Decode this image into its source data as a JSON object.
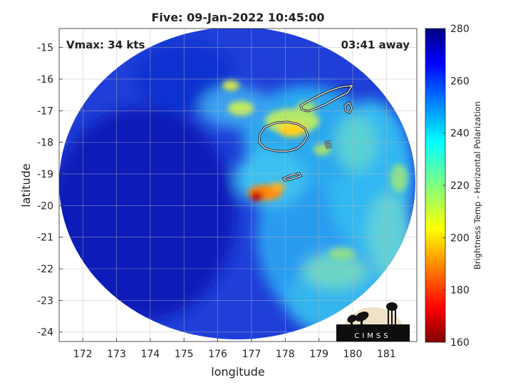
{
  "title": "Five: 09-Jan-2022 10:45:00",
  "annotations": {
    "vmax": "Vmax: 34 kts",
    "time_away": "03:41 away"
  },
  "axes": {
    "xlabel": "longitude",
    "ylabel": "latitude",
    "xlim": [
      171.3,
      181.9
    ],
    "ylim": [
      -24.3,
      -14.4
    ],
    "xticks": [
      {
        "value": 172,
        "label": "172"
      },
      {
        "value": 173,
        "label": "173"
      },
      {
        "value": 174,
        "label": "174"
      },
      {
        "value": 175,
        "label": "175"
      },
      {
        "value": 176,
        "label": "176"
      },
      {
        "value": 177,
        "label": "177"
      },
      {
        "value": 178,
        "label": "178"
      },
      {
        "value": 179,
        "label": "179"
      },
      {
        "value": 180,
        "label": "180"
      },
      {
        "value": 181,
        "label": "181"
      }
    ],
    "yticks": [
      {
        "value": -15,
        "label": "-15"
      },
      {
        "value": -16,
        "label": "-16"
      },
      {
        "value": -17,
        "label": "-17"
      },
      {
        "value": -18,
        "label": "-18"
      },
      {
        "value": -19,
        "label": "-19"
      },
      {
        "value": -20,
        "label": "-20"
      },
      {
        "value": -21,
        "label": "-21"
      },
      {
        "value": -22,
        "label": "-22"
      },
      {
        "value": -23,
        "label": "-23"
      },
      {
        "value": -24,
        "label": "-24"
      }
    ],
    "grid": true
  },
  "colorbar": {
    "label": "Brightness Temp - Horizontal Polarization",
    "range": [
      160,
      280
    ],
    "colormap": "jet",
    "ticks": [
      {
        "value": 280,
        "label": "280"
      },
      {
        "value": 260,
        "label": "260"
      },
      {
        "value": 240,
        "label": "240"
      },
      {
        "value": 220,
        "label": "220"
      },
      {
        "value": 200,
        "label": "200"
      },
      {
        "value": 180,
        "label": "180"
      },
      {
        "value": 160,
        "label": "160"
      }
    ]
  },
  "logo": {
    "text": "CIMSS"
  },
  "coastline_color": "#ffffff",
  "coastline_outline": "#000000"
}
